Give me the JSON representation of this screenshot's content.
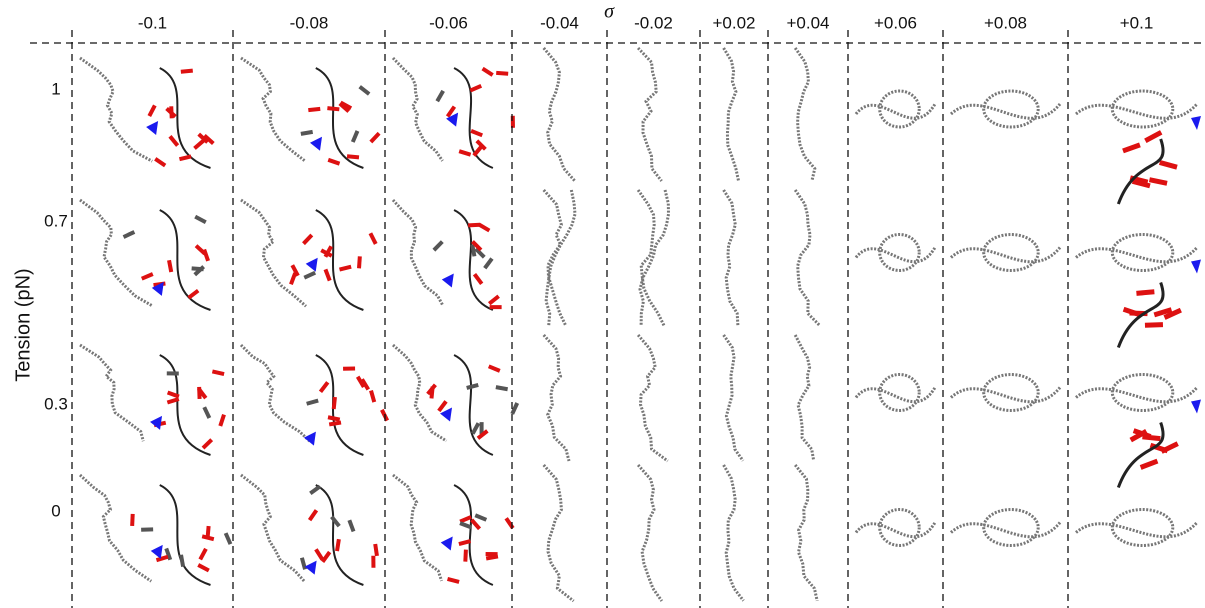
{
  "header": {
    "symbol": "σ",
    "columns": [
      "-0.1",
      "-0.08",
      "-0.06",
      "-0.04",
      "-0.02",
      "+0.02",
      "+0.04",
      "+0.06",
      "+0.08",
      "+0.1"
    ]
  },
  "axis": {
    "title": "Tension (pN)",
    "rows": [
      "1",
      "0.7",
      "0.3",
      "0"
    ]
  }
}
